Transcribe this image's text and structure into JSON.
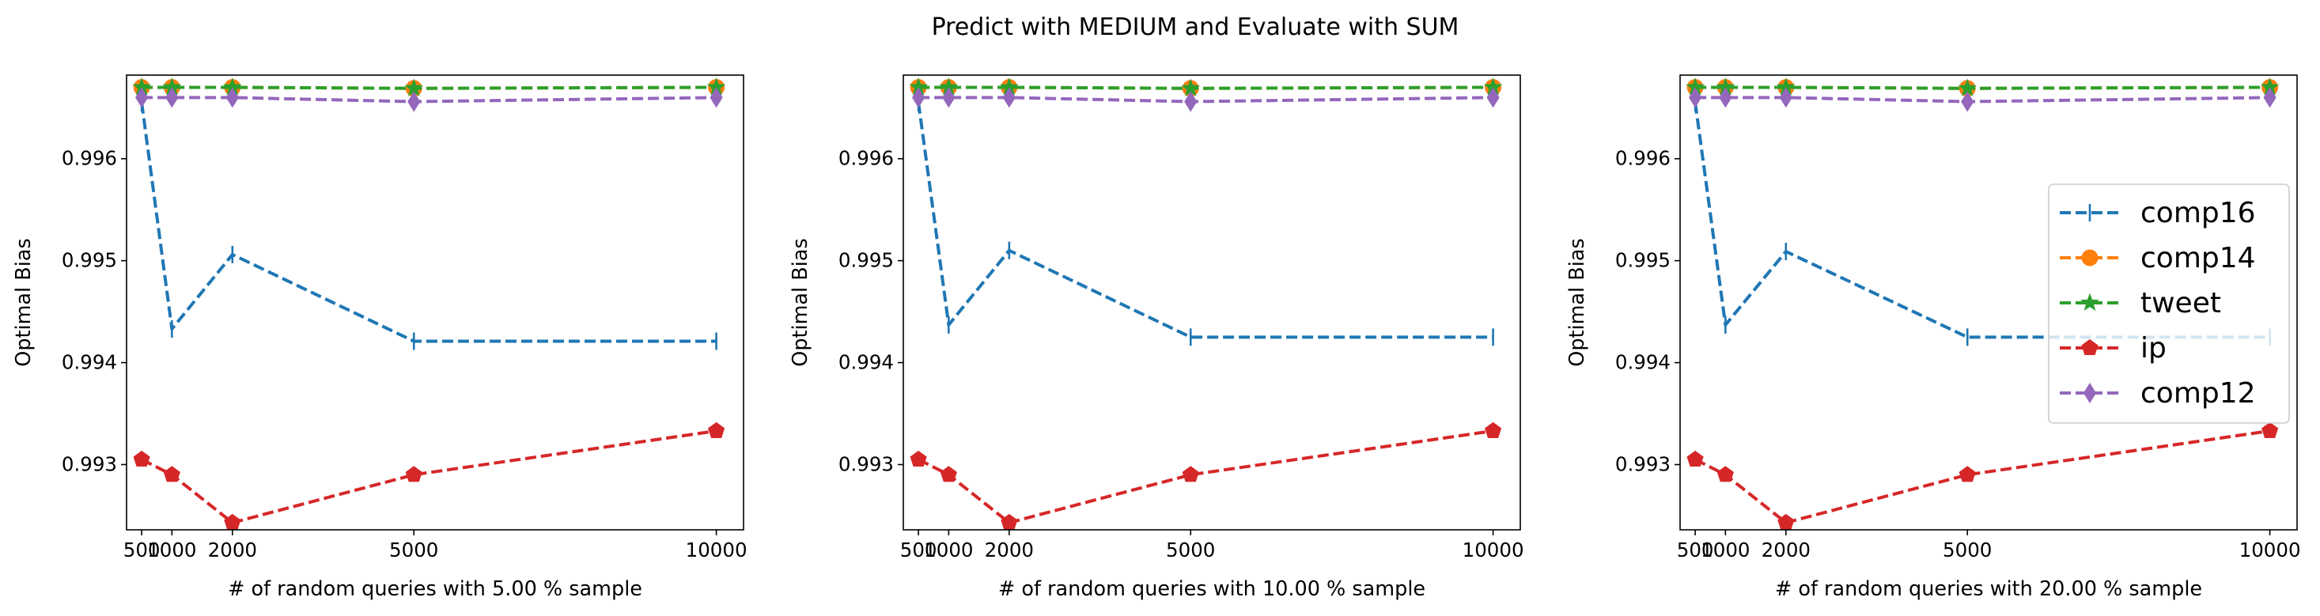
{
  "figure": {
    "title": "Predict with MEDIUM and Evaluate with SUM"
  },
  "colors": {
    "comp16": "#1f77b4",
    "comp14": "#ff7f0e",
    "tweet": "#2ca02c",
    "ip": "#d62728",
    "comp12": "#9467bd"
  },
  "chart_data": [
    {
      "type": "line",
      "xlabel": "# of random queries with 5.00 % sample",
      "ylabel": "Optimal Bias",
      "x": [
        500,
        1000,
        2000,
        5000,
        10000
      ],
      "xticks": [
        500,
        1000,
        2000,
        5000,
        10000
      ],
      "xtick_labels": [
        "500",
        "1000",
        "2000",
        "5000",
        "10000"
      ],
      "yticks": [
        0.993,
        0.994,
        0.995,
        0.996
      ],
      "ytick_labels": [
        "0.993",
        "0.994",
        "0.995",
        "0.996"
      ],
      "xlim": [
        250,
        10450
      ],
      "ylim": [
        0.99236,
        0.99682
      ],
      "grid": false,
      "legend": null,
      "series": [
        {
          "name": "comp16",
          "marker": "vline",
          "values": [
            0.99655,
            0.99433,
            0.99506,
            0.99421,
            0.99421
          ]
        },
        {
          "name": "comp14",
          "marker": "circle",
          "values": [
            0.9967,
            0.9967,
            0.9967,
            0.99669,
            0.9967
          ]
        },
        {
          "name": "tweet",
          "marker": "star",
          "values": [
            0.9967,
            0.9967,
            0.9967,
            0.99669,
            0.9967
          ]
        },
        {
          "name": "ip",
          "marker": "pentagon",
          "values": [
            0.99305,
            0.9929,
            0.99243,
            0.9929,
            0.99333
          ]
        },
        {
          "name": "comp12",
          "marker": "diamond",
          "values": [
            0.9966,
            0.9966,
            0.9966,
            0.99656,
            0.9966
          ]
        }
      ]
    },
    {
      "type": "line",
      "xlabel": "# of random queries with 10.00 % sample",
      "ylabel": "Optimal Bias",
      "x": [
        500,
        1000,
        2000,
        5000,
        10000
      ],
      "xticks": [
        500,
        1000,
        2000,
        5000,
        10000
      ],
      "xtick_labels": [
        "500",
        "1000",
        "2000",
        "5000",
        "10000"
      ],
      "yticks": [
        0.993,
        0.994,
        0.995,
        0.996
      ],
      "ytick_labels": [
        "0.993",
        "0.994",
        "0.995",
        "0.996"
      ],
      "xlim": [
        250,
        10450
      ],
      "ylim": [
        0.99236,
        0.99682
      ],
      "grid": false,
      "legend": null,
      "series": [
        {
          "name": "comp16",
          "marker": "vline",
          "values": [
            0.99655,
            0.99437,
            0.9951,
            0.99425,
            0.99425
          ]
        },
        {
          "name": "comp14",
          "marker": "circle",
          "values": [
            0.9967,
            0.9967,
            0.9967,
            0.99669,
            0.9967
          ]
        },
        {
          "name": "tweet",
          "marker": "star",
          "values": [
            0.9967,
            0.9967,
            0.9967,
            0.99669,
            0.9967
          ]
        },
        {
          "name": "ip",
          "marker": "pentagon",
          "values": [
            0.99305,
            0.9929,
            0.99243,
            0.9929,
            0.99333
          ]
        },
        {
          "name": "comp12",
          "marker": "diamond",
          "values": [
            0.9966,
            0.9966,
            0.9966,
            0.99656,
            0.9966
          ]
        }
      ]
    },
    {
      "type": "line",
      "xlabel": "# of random queries with 20.00 % sample",
      "ylabel": "Optimal Bias",
      "x": [
        500,
        1000,
        2000,
        5000,
        10000
      ],
      "xticks": [
        500,
        1000,
        2000,
        5000,
        10000
      ],
      "xtick_labels": [
        "500",
        "1000",
        "2000",
        "5000",
        "10000"
      ],
      "yticks": [
        0.993,
        0.994,
        0.995,
        0.996
      ],
      "ytick_labels": [
        "0.993",
        "0.994",
        "0.995",
        "0.996"
      ],
      "xlim": [
        250,
        10450
      ],
      "ylim": [
        0.99236,
        0.99682
      ],
      "grid": false,
      "legend": "center-right",
      "series": [
        {
          "name": "comp16",
          "marker": "vline",
          "values": [
            0.99655,
            0.99437,
            0.99509,
            0.99425,
            0.99425
          ]
        },
        {
          "name": "comp14",
          "marker": "circle",
          "values": [
            0.9967,
            0.9967,
            0.9967,
            0.99669,
            0.9967
          ]
        },
        {
          "name": "tweet",
          "marker": "star",
          "values": [
            0.9967,
            0.9967,
            0.9967,
            0.99669,
            0.9967
          ]
        },
        {
          "name": "ip",
          "marker": "pentagon",
          "values": [
            0.99305,
            0.9929,
            0.99243,
            0.9929,
            0.99333
          ]
        },
        {
          "name": "comp12",
          "marker": "diamond",
          "values": [
            0.9966,
            0.9966,
            0.9966,
            0.99656,
            0.9966
          ]
        }
      ]
    }
  ]
}
